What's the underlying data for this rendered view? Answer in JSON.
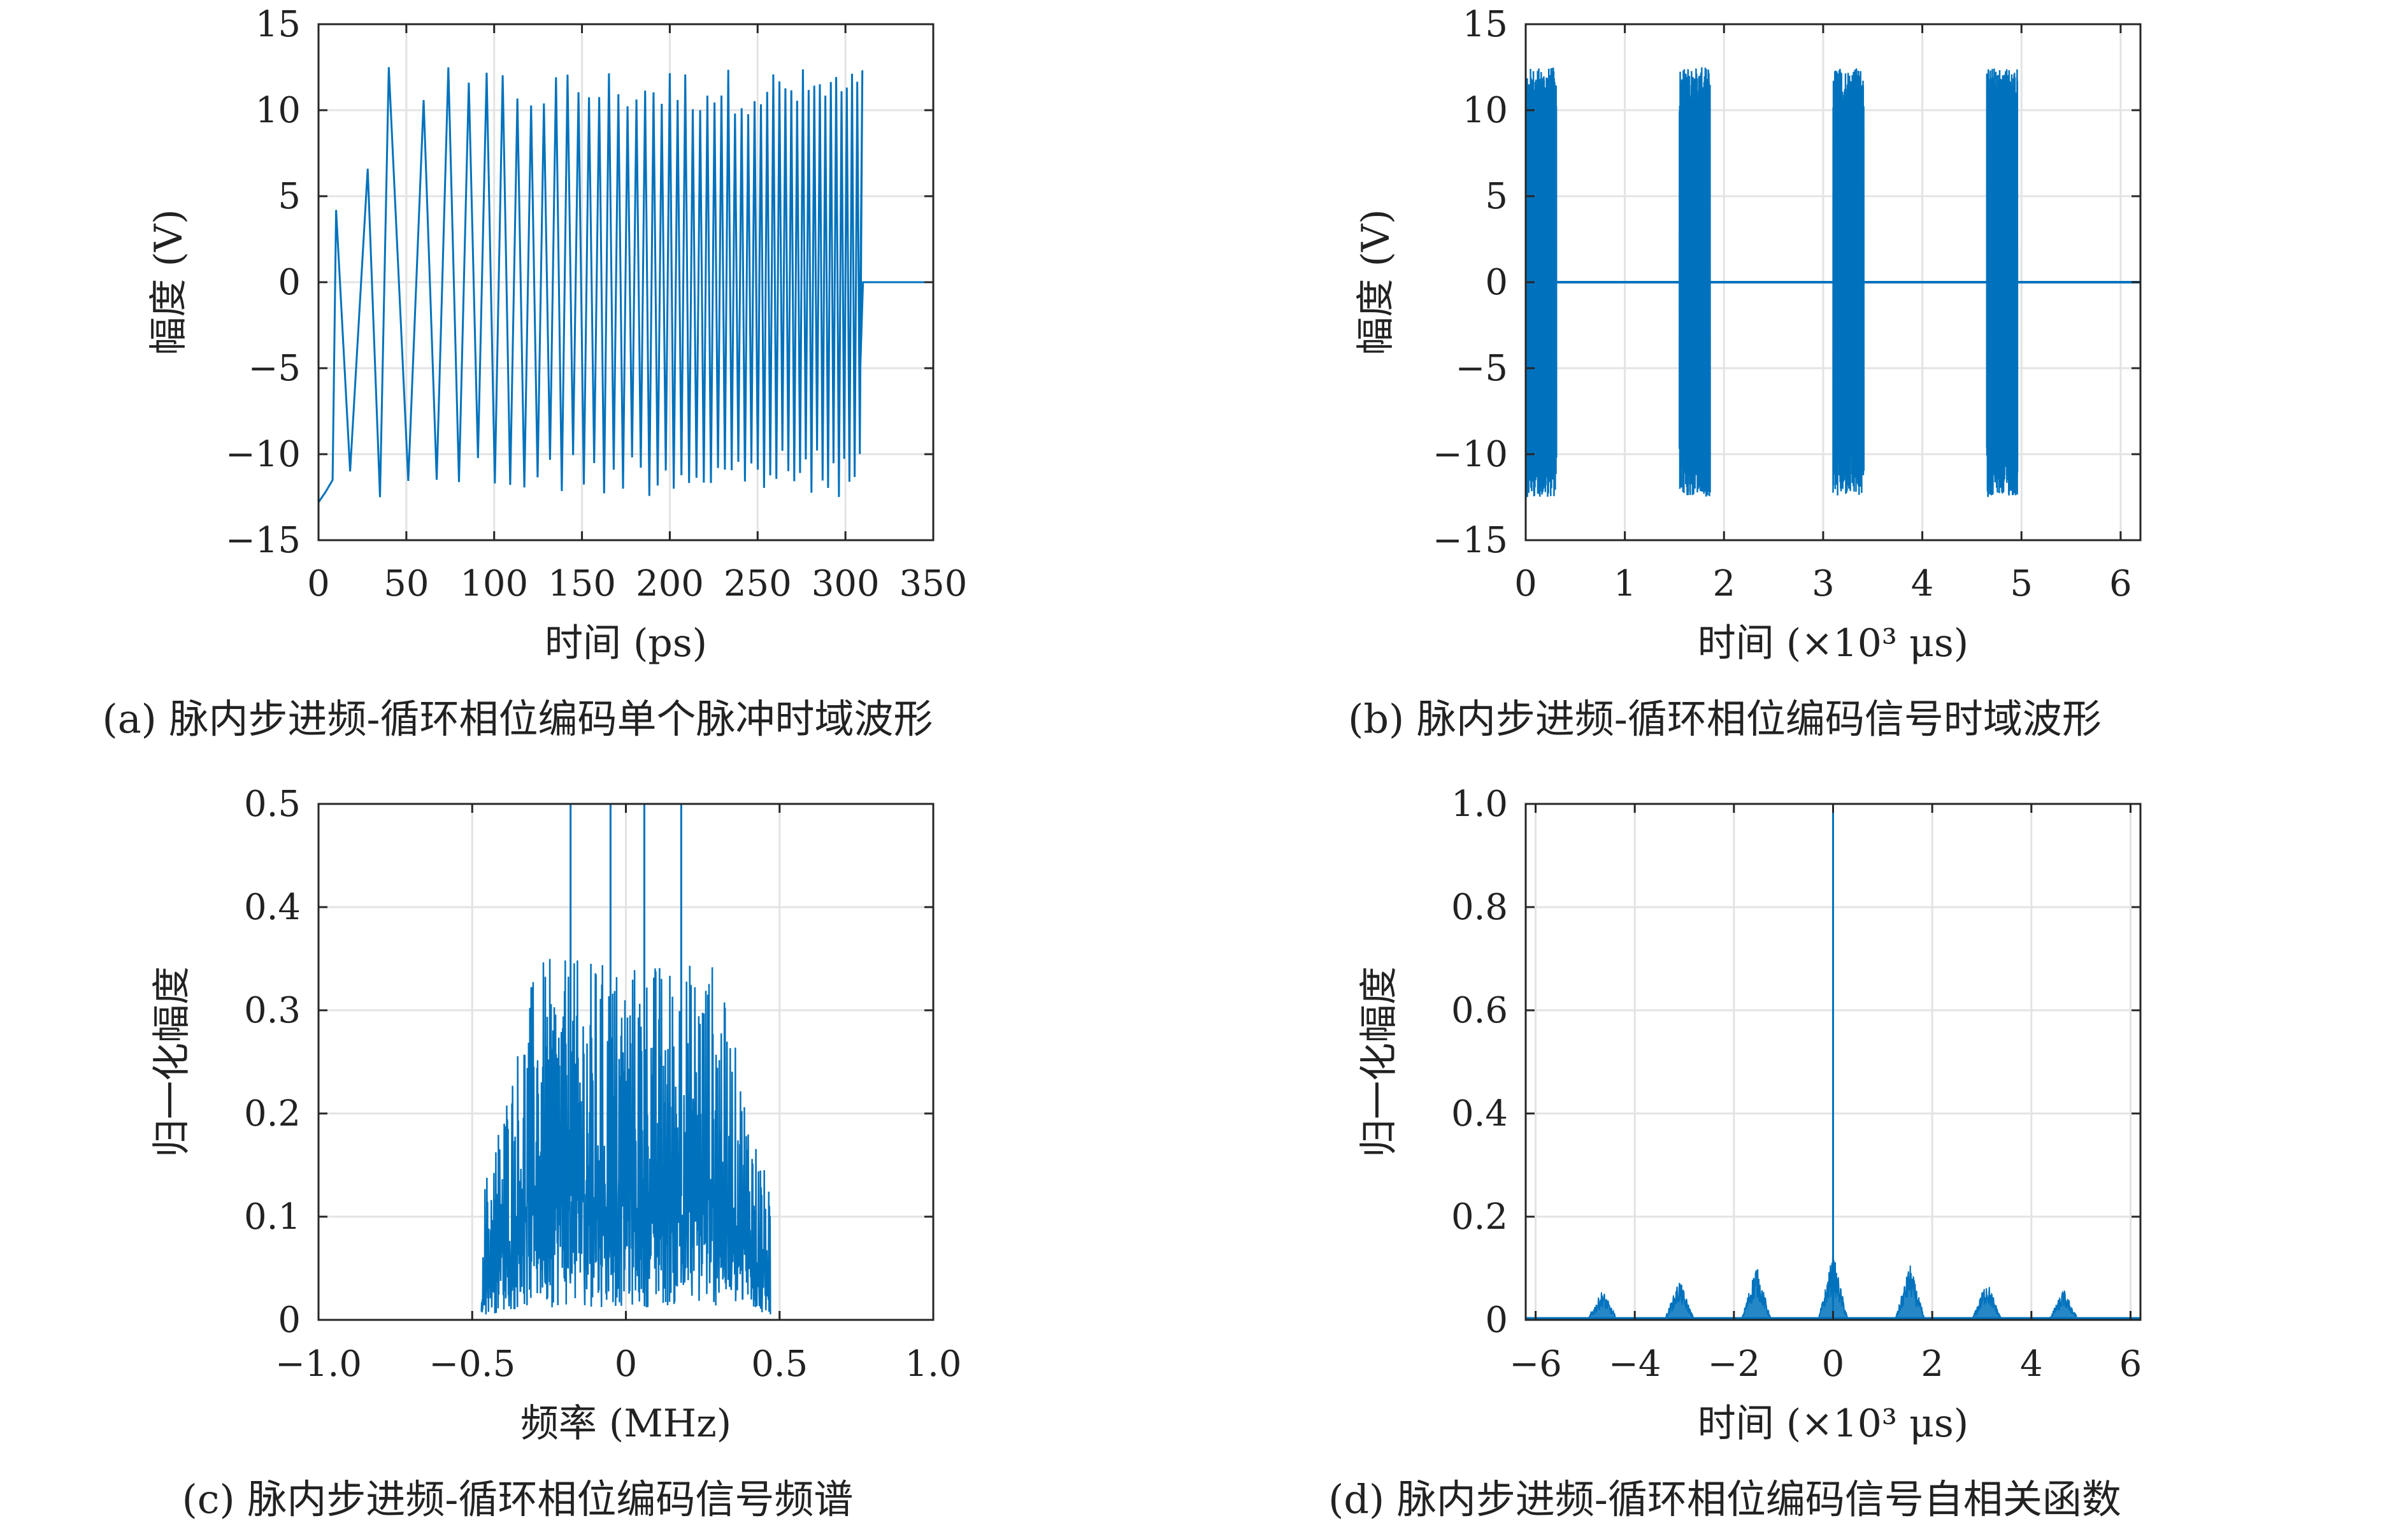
{
  "chart_data": [
    {
      "type": "line",
      "caption": "(a) 脉内步进频-循环相位编码单个脉冲时域波形",
      "xlabel": "时间 (ps)",
      "ylabel": "幅度 (V)",
      "xlim": [
        0,
        350
      ],
      "ylim": [
        -15,
        15
      ],
      "xticks": [
        "0",
        "50",
        "100",
        "150",
        "200",
        "250",
        "300",
        "350"
      ],
      "yticks": [
        "15",
        "10",
        "5",
        "0",
        "−5",
        "−10",
        "−15"
      ],
      "grid": true,
      "color": "#0072BD",
      "signal": {
        "amplitude": 12.5,
        "pulse_end": 310,
        "after_pulse_value": 0,
        "extrema": [
          -12.8,
          4.2,
          -11,
          6.6,
          -12.5,
          12.5,
          -12.5,
          12.5,
          -12.5,
          12.5,
          -12.5
        ]
      }
    },
    {
      "type": "line",
      "caption": "(b) 脉内步进频-循环相位编码信号时域波形",
      "xlabel": "时间 (×10³ μs)",
      "ylabel": "幅度 (V)",
      "xlim": [
        0,
        6.2
      ],
      "ylim": [
        -15,
        15
      ],
      "xticks": [
        "0",
        "1",
        "2",
        "3",
        "4",
        "5",
        "6"
      ],
      "yticks": [
        "15",
        "10",
        "5",
        "0",
        "−5",
        "−10",
        "−15"
      ],
      "grid": true,
      "color": "#0072BD",
      "pulses": [
        {
          "start": 0.0,
          "end": 0.31
        },
        {
          "start": 1.55,
          "end": 1.86
        },
        {
          "start": 3.1,
          "end": 3.41
        },
        {
          "start": 4.65,
          "end": 4.96
        }
      ],
      "pulse_amplitude": 12.5,
      "baseline": 0
    },
    {
      "type": "line",
      "caption": "(c) 脉内步进频-循环相位编码信号频谱",
      "xlabel": "频率 (MHz)",
      "ylabel": "归一化幅度",
      "xlim": [
        -1.0,
        1.0
      ],
      "ylim": [
        0,
        0.5
      ],
      "xticks": [
        "−1.0",
        "−0.5",
        "0",
        "0.5",
        "1.0"
      ],
      "yticks": [
        "0.5",
        "0.4",
        "0.3",
        "0.2",
        "0.1",
        "0"
      ],
      "grid": true,
      "color": "#0072BD",
      "band": [
        -0.47,
        0.47
      ],
      "peak_value": 0.5,
      "typical_level": 0.2
    },
    {
      "type": "line",
      "caption": "(d) 脉内步进频-循环相位编码信号自相关函数",
      "xlabel": "时间 (×10³ μs)",
      "ylabel": "归一化幅度",
      "xlim": [
        -6.2,
        6.2
      ],
      "ylim": [
        0,
        1.0
      ],
      "xticks": [
        "−6",
        "−4",
        "−2",
        "0",
        "2",
        "4",
        "6"
      ],
      "yticks": [
        "1.0",
        "0.8",
        "0.6",
        "0.4",
        "0.2",
        "0"
      ],
      "grid": true,
      "color": "#0072BD",
      "lobes": [
        {
          "x": -4.65,
          "height": 0.06
        },
        {
          "x": -3.1,
          "height": 0.08
        },
        {
          "x": -1.55,
          "height": 0.11
        },
        {
          "x": 0,
          "height": 1.0
        },
        {
          "x": 1.55,
          "height": 0.11
        },
        {
          "x": 3.1,
          "height": 0.08
        },
        {
          "x": 4.65,
          "height": 0.06
        }
      ]
    }
  ]
}
